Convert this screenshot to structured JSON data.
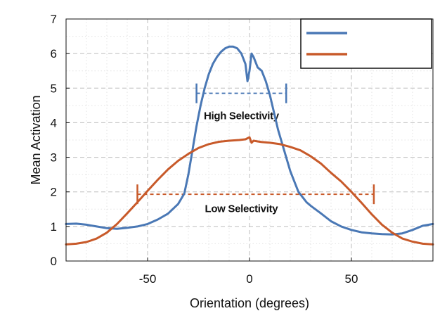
{
  "chart_data": {
    "type": "line",
    "title": "",
    "xlabel": "Orientation (degrees)",
    "ylabel": "Mean Activation",
    "xlim": [
      -90,
      90
    ],
    "ylim": [
      0,
      7
    ],
    "xticks": [
      -50,
      0,
      50
    ],
    "xtick_labels": [
      "-50",
      "0",
      "50"
    ],
    "yticks": [
      0,
      1,
      2,
      3,
      4,
      5,
      6,
      7
    ],
    "ytick_labels": [
      "0",
      "1",
      "2",
      "3",
      "4",
      "5",
      "6",
      "7"
    ],
    "grid": true,
    "legend": {
      "position": "top-right",
      "entries": [
        "",
        ""
      ]
    },
    "series": [
      {
        "color": "#4a78b5",
        "x": [
          -90,
          -85,
          -80,
          -75,
          -70,
          -65,
          -60,
          -55,
          -50,
          -45,
          -40,
          -35,
          -32,
          -30,
          -28,
          -26,
          -24,
          -22,
          -20,
          -18,
          -16,
          -14,
          -12,
          -10,
          -8,
          -6,
          -4,
          -2,
          -1,
          0,
          1,
          2,
          4,
          6,
          8,
          10,
          12,
          14,
          16,
          18,
          20,
          22,
          24,
          26,
          28,
          30,
          35,
          40,
          45,
          50,
          55,
          60,
          65,
          70,
          75,
          80,
          85,
          90
        ],
        "y": [
          1.07,
          1.08,
          1.05,
          1.0,
          0.95,
          0.93,
          0.96,
          1.0,
          1.07,
          1.2,
          1.37,
          1.65,
          1.95,
          2.5,
          3.2,
          3.9,
          4.5,
          5.0,
          5.4,
          5.7,
          5.9,
          6.05,
          6.15,
          6.2,
          6.2,
          6.15,
          6.0,
          5.7,
          5.2,
          5.5,
          6.0,
          5.9,
          5.6,
          5.5,
          5.2,
          4.8,
          4.3,
          3.8,
          3.4,
          3.0,
          2.6,
          2.3,
          2.0,
          1.85,
          1.7,
          1.6,
          1.38,
          1.15,
          1.0,
          0.9,
          0.83,
          0.8,
          0.78,
          0.77,
          0.8,
          0.9,
          1.02,
          1.07
        ]
      },
      {
        "color": "#c85a2a",
        "x": [
          -90,
          -85,
          -80,
          -75,
          -70,
          -65,
          -60,
          -55,
          -50,
          -45,
          -40,
          -35,
          -30,
          -25,
          -20,
          -15,
          -10,
          -5,
          -2,
          0,
          1,
          2,
          4,
          6,
          10,
          15,
          20,
          25,
          30,
          35,
          40,
          45,
          50,
          55,
          60,
          65,
          70,
          75,
          80,
          85,
          90
        ],
        "y": [
          0.48,
          0.5,
          0.55,
          0.65,
          0.82,
          1.07,
          1.38,
          1.7,
          2.03,
          2.35,
          2.65,
          2.9,
          3.1,
          3.27,
          3.38,
          3.45,
          3.48,
          3.5,
          3.52,
          3.58,
          3.42,
          3.48,
          3.46,
          3.44,
          3.42,
          3.38,
          3.3,
          3.2,
          3.03,
          2.82,
          2.55,
          2.3,
          2.0,
          1.68,
          1.35,
          1.05,
          0.82,
          0.65,
          0.56,
          0.5,
          0.48
        ]
      }
    ],
    "annotations": [
      {
        "text": "High Selectivity",
        "x_start": -26,
        "x_end": 18,
        "y": 4.85,
        "label_x": -4,
        "label_y": 4.2,
        "color": "#4a78b5"
      },
      {
        "text": "Low Selectivity",
        "x_start": -55,
        "x_end": 61,
        "y": 1.93,
        "label_x": -4,
        "label_y": 1.52,
        "color": "#c85a2a"
      }
    ]
  }
}
